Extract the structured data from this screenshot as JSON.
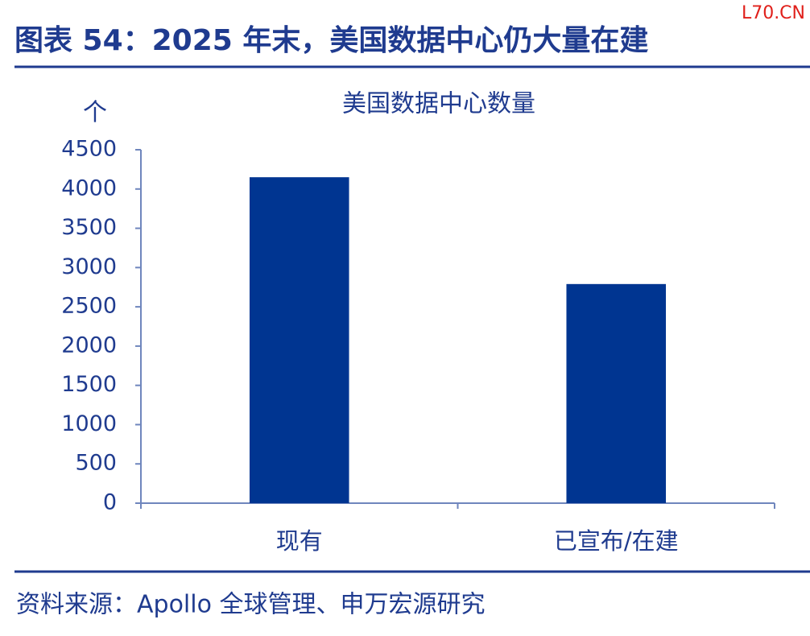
{
  "header": {
    "title": "图表 54：2025 年末，美国数据中心仍大量在建"
  },
  "watermark": "L70.CN",
  "source": "资料来源：Apollo 全球管理、申万宏源研究",
  "chart_data": {
    "type": "bar",
    "title": "美国数据中心数量",
    "ylabel": "个",
    "categories": [
      "现有",
      "已宣布/在建"
    ],
    "values": [
      4150,
      2790
    ],
    "color": "#003591",
    "ylim": [
      0,
      4500
    ],
    "yticks": [
      0,
      500,
      1000,
      1500,
      2000,
      2500,
      3000,
      3500,
      4000,
      4500
    ],
    "grid": false
  }
}
